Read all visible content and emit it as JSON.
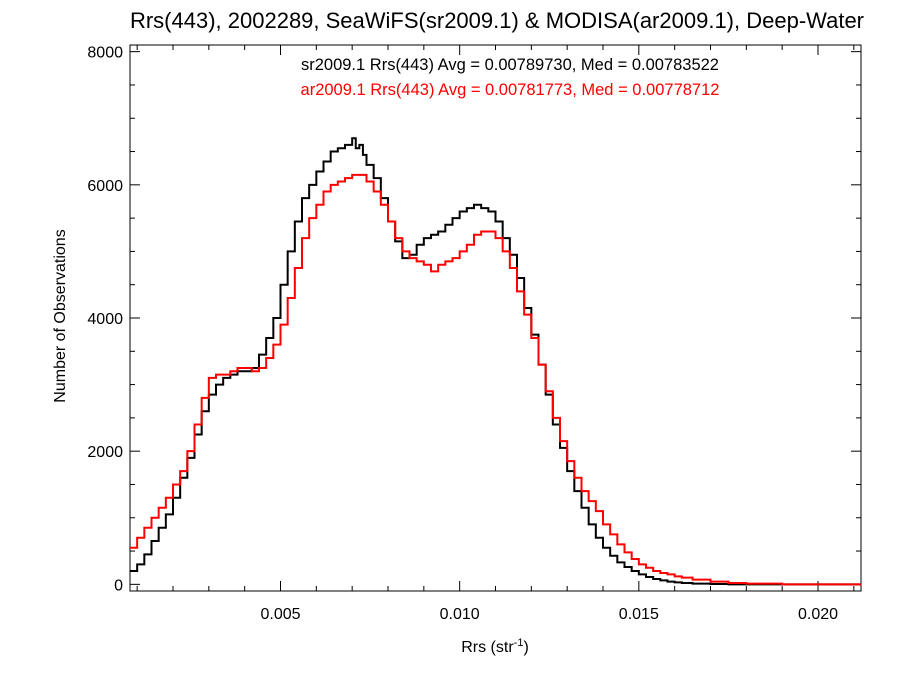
{
  "chart_data": {
    "type": "line",
    "title": "Rrs(443), 2002289, SeaWiFS(sr2009.1) & MODISA(ar2009.1), Deep-Water",
    "xlabel": "Rrs (str",
    "xlabel_sup": "-1",
    "xlabel_end": ")",
    "ylabel": "Number of Observations",
    "xlim": [
      0.0008,
      0.0212
    ],
    "ylim": [
      -100,
      8100
    ],
    "x_ticks": [
      0.005,
      0.01,
      0.015,
      0.02
    ],
    "x_tick_labels": [
      "0.005",
      "0.010",
      "0.015",
      "0.020"
    ],
    "y_ticks": [
      0,
      2000,
      4000,
      6000,
      8000
    ],
    "y_tick_labels": [
      "0",
      "2000",
      "4000",
      "6000",
      "8000"
    ],
    "grid": false,
    "annotations": [
      "sr2009.1 Rrs(443) Avg = 0.00789730, Med = 0.00783522",
      "ar2009.1 Rrs(443) Avg = 0.00781773, Med = 0.00778712"
    ],
    "series": [
      {
        "name": "sr2009.1",
        "color": "#000000",
        "style": "step",
        "x": [
          0.0008,
          0.001,
          0.0012,
          0.0014,
          0.0016,
          0.0018,
          0.002,
          0.0022,
          0.0024,
          0.0026,
          0.0028,
          0.003,
          0.0032,
          0.0034,
          0.0036,
          0.0038,
          0.004,
          0.0042,
          0.0044,
          0.0046,
          0.0048,
          0.005,
          0.0052,
          0.0054,
          0.0056,
          0.0058,
          0.006,
          0.0062,
          0.0064,
          0.0066,
          0.0068,
          0.007,
          0.0071,
          0.0072,
          0.0073,
          0.0074,
          0.0076,
          0.0078,
          0.008,
          0.0082,
          0.0084,
          0.0086,
          0.0088,
          0.009,
          0.0092,
          0.0094,
          0.0096,
          0.0098,
          0.01,
          0.0102,
          0.0104,
          0.0106,
          0.0108,
          0.011,
          0.0112,
          0.0114,
          0.0116,
          0.0118,
          0.012,
          0.0122,
          0.0124,
          0.0126,
          0.0128,
          0.013,
          0.0132,
          0.0134,
          0.0136,
          0.0138,
          0.014,
          0.0142,
          0.0144,
          0.0146,
          0.0148,
          0.015,
          0.0152,
          0.0154,
          0.0156,
          0.0158,
          0.016,
          0.0162,
          0.0165,
          0.017,
          0.0175,
          0.018,
          0.019,
          0.02,
          0.0212
        ],
        "values": [
          200,
          300,
          450,
          650,
          850,
          1050,
          1300,
          1600,
          1900,
          2250,
          2600,
          2850,
          3000,
          3100,
          3150,
          3200,
          3200,
          3250,
          3450,
          3700,
          4000,
          4500,
          5000,
          5450,
          5800,
          6000,
          6200,
          6350,
          6500,
          6550,
          6600,
          6700,
          6550,
          6600,
          6450,
          6300,
          6100,
          5800,
          5450,
          5150,
          4900,
          4950,
          5100,
          5200,
          5250,
          5300,
          5400,
          5500,
          5600,
          5650,
          5700,
          5650,
          5600,
          5450,
          5200,
          4950,
          4600,
          4150,
          3750,
          3300,
          2850,
          2400,
          2050,
          1700,
          1400,
          1150,
          900,
          700,
          550,
          430,
          330,
          260,
          200,
          150,
          110,
          80,
          60,
          40,
          30,
          20,
          10,
          5,
          0,
          0,
          0,
          0,
          0
        ]
      },
      {
        "name": "ar2009.1",
        "color": "#ff0000",
        "style": "step",
        "x": [
          0.0008,
          0.001,
          0.0012,
          0.0014,
          0.0016,
          0.0018,
          0.002,
          0.0022,
          0.0024,
          0.0026,
          0.0028,
          0.003,
          0.0032,
          0.0034,
          0.0036,
          0.0038,
          0.004,
          0.0042,
          0.0044,
          0.0046,
          0.0048,
          0.005,
          0.0052,
          0.0054,
          0.0056,
          0.0058,
          0.006,
          0.0062,
          0.0064,
          0.0066,
          0.0068,
          0.007,
          0.0072,
          0.0074,
          0.0076,
          0.0078,
          0.008,
          0.0082,
          0.0084,
          0.0086,
          0.0088,
          0.009,
          0.0092,
          0.0094,
          0.0096,
          0.0098,
          0.01,
          0.0102,
          0.0104,
          0.0106,
          0.0108,
          0.011,
          0.0112,
          0.0114,
          0.0116,
          0.0118,
          0.012,
          0.0122,
          0.0124,
          0.0126,
          0.0128,
          0.013,
          0.0132,
          0.0134,
          0.0136,
          0.0138,
          0.014,
          0.0142,
          0.0144,
          0.0146,
          0.0148,
          0.015,
          0.0152,
          0.0154,
          0.0156,
          0.0158,
          0.016,
          0.0162,
          0.0165,
          0.017,
          0.0175,
          0.018,
          0.019,
          0.02,
          0.0212
        ],
        "values": [
          550,
          700,
          850,
          1000,
          1150,
          1300,
          1500,
          1700,
          2000,
          2400,
          2800,
          3100,
          3150,
          3150,
          3200,
          3250,
          3250,
          3200,
          3250,
          3400,
          3600,
          3900,
          4300,
          4750,
          5200,
          5500,
          5700,
          5900,
          6000,
          6050,
          6100,
          6150,
          6150,
          6050,
          5900,
          5700,
          5450,
          5200,
          5000,
          4900,
          4850,
          4800,
          4700,
          4800,
          4850,
          4900,
          5000,
          5100,
          5250,
          5300,
          5300,
          5200,
          5000,
          4750,
          4400,
          4050,
          3700,
          3300,
          2900,
          2500,
          2150,
          1850,
          1600,
          1400,
          1250,
          1100,
          900,
          750,
          600,
          480,
          380,
          300,
          250,
          200,
          170,
          150,
          120,
          100,
          70,
          40,
          20,
          10,
          0,
          0,
          0
        ]
      }
    ]
  }
}
